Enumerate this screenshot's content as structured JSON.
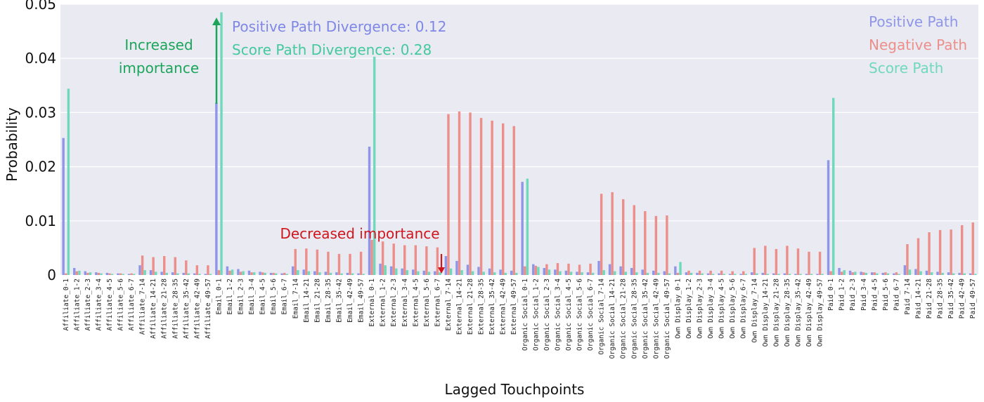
{
  "chart_data": {
    "type": "bar",
    "title": "",
    "xlabel": "Lagged Touchpoints",
    "ylabel": "Probability",
    "ylim": [
      0,
      0.05
    ],
    "yticks": [
      {
        "v": 0,
        "label": "0"
      },
      {
        "v": 0.01,
        "label": "0.01"
      },
      {
        "v": 0.02,
        "label": "0.02"
      },
      {
        "v": 0.03,
        "label": "0.03"
      },
      {
        "v": 0.04,
        "label": "0.04"
      },
      {
        "v": 0.05,
        "label": "0.05"
      }
    ],
    "grid": true,
    "legend_position": "top-right",
    "categories": [
      "Affiliate_0-1",
      "Affiliate_1-2",
      "Affiliate_2-3",
      "Affiliate_3-4",
      "Affiliate_4-5",
      "Affiliate_5-6",
      "Affiliate_6-7",
      "Affiliate_7-14",
      "Affiliate_14-21",
      "Affiliate_21-28",
      "Affiliate_28-35",
      "Affiliate_35-42",
      "Affiliate_42-49",
      "Affiliate_49-57",
      "Email_0-1",
      "Email_1-2",
      "Email_2-3",
      "Email_3-4",
      "Email_4-5",
      "Email_5-6",
      "Email_6-7",
      "Email_7-14",
      "Email_14-21",
      "Email_21-28",
      "Email_28-35",
      "Email_35-42",
      "Email_42-49",
      "Email_49-57",
      "External_0-1",
      "External_1-2",
      "External_2-3",
      "External_3-4",
      "External_4-5",
      "External_5-6",
      "External_6-7",
      "External_7-14",
      "External_14-21",
      "External_21-28",
      "External_28-35",
      "External_35-42",
      "External_42-49",
      "External_49-57",
      "Organic Social_0-1",
      "Organic Social_1-2",
      "Organic Social_2-3",
      "Organic Social_3-4",
      "Organic Social_4-5",
      "Organic Social_5-6",
      "Organic Social_6-7",
      "Organic Social_7-14",
      "Organic Social_14-21",
      "Organic Social_21-28",
      "Organic Social_28-35",
      "Organic Social_35-42",
      "Organic Social_42-49",
      "Organic Social_49-57",
      "Own Display_0-1",
      "Own Display_1-2",
      "Own Display_2-3",
      "Own Display_3-4",
      "Own Display_4-5",
      "Own Display_5-6",
      "Own Display_6-7",
      "Own Display_7-14",
      "Own Display_14-21",
      "Own Display_21-28",
      "Own Display_28-35",
      "Own Display_35-42",
      "Own Display_42-49",
      "Own Display_49-57",
      "Paid_0-1",
      "Paid_1-2",
      "Paid_2-3",
      "Paid_3-4",
      "Paid_4-5",
      "Paid_5-6",
      "Paid_6-7",
      "Paid_7-14",
      "Paid_14-21",
      "Paid_21-28",
      "Paid_28-35",
      "Paid_35-42",
      "Paid_42-49",
      "Paid_49-57"
    ],
    "series": [
      {
        "name": "Positive Path",
        "color": "#8f96e8",
        "values": [
          0.0253,
          0.0013,
          0.0007,
          0.0005,
          0.0004,
          0.0003,
          0.0002,
          0.0018,
          0.0009,
          0.0006,
          0.0005,
          0.0004,
          0.0003,
          0.0002,
          0.0318,
          0.0016,
          0.0011,
          0.0008,
          0.0006,
          0.0004,
          0.0003,
          0.0016,
          0.001,
          0.0007,
          0.0006,
          0.0005,
          0.0004,
          0.0003,
          0.0237,
          0.0021,
          0.0016,
          0.0012,
          0.001,
          0.0008,
          0.0007,
          0.0035,
          0.0026,
          0.0019,
          0.0015,
          0.0012,
          0.001,
          0.0008,
          0.0172,
          0.002,
          0.0013,
          0.001,
          0.0008,
          0.0006,
          0.0005,
          0.0026,
          0.002,
          0.0016,
          0.0013,
          0.001,
          0.0008,
          0.0007,
          0.0016,
          0.0005,
          0.0004,
          0.0003,
          0.0003,
          0.0002,
          0.0002,
          0.0005,
          0.0004,
          0.0003,
          0.0003,
          0.0002,
          0.0002,
          0.0002,
          0.0212,
          0.0013,
          0.0008,
          0.0006,
          0.0005,
          0.0004,
          0.0003,
          0.0018,
          0.0011,
          0.0008,
          0.0006,
          0.0005,
          0.0004,
          0.0003
        ]
      },
      {
        "name": "Negative Path",
        "color": "#ec8f8a",
        "values": [
          0.0003,
          0.0007,
          0.0004,
          0.0004,
          0.0003,
          0.0003,
          0.0003,
          0.0036,
          0.0033,
          0.0035,
          0.0033,
          0.0027,
          0.0018,
          0.0018,
          0.0009,
          0.0008,
          0.0006,
          0.0005,
          0.0005,
          0.0004,
          0.0004,
          0.0048,
          0.0049,
          0.0047,
          0.0043,
          0.0039,
          0.0039,
          0.0043,
          0.0065,
          0.0062,
          0.0058,
          0.0055,
          0.0055,
          0.0053,
          0.0051,
          0.0297,
          0.0302,
          0.03,
          0.029,
          0.0285,
          0.028,
          0.0275,
          0.0016,
          0.0017,
          0.002,
          0.0022,
          0.0021,
          0.0019,
          0.0021,
          0.015,
          0.0153,
          0.014,
          0.0129,
          0.0118,
          0.0109,
          0.011,
          0.0004,
          0.0008,
          0.0008,
          0.0008,
          0.0008,
          0.0007,
          0.0007,
          0.005,
          0.0054,
          0.0048,
          0.0054,
          0.0049,
          0.0043,
          0.0043,
          0.0007,
          0.0006,
          0.0005,
          0.0005,
          0.0005,
          0.0005,
          0.0005,
          0.0057,
          0.0068,
          0.0079,
          0.0083,
          0.0084,
          0.0092,
          0.0097
        ]
      },
      {
        "name": "Score Path",
        "color": "#6fd9bc",
        "values": [
          0.0344,
          0.0008,
          0.0005,
          0.0003,
          0.0002,
          0.0002,
          0.0002,
          0.0009,
          0.0006,
          0.0004,
          0.0003,
          0.0003,
          0.0002,
          0.0002,
          0.0485,
          0.001,
          0.0007,
          0.0005,
          0.0004,
          0.0003,
          0.0002,
          0.0009,
          0.0007,
          0.0005,
          0.0004,
          0.0003,
          0.0003,
          0.0002,
          0.0403,
          0.0018,
          0.0012,
          0.0009,
          0.0007,
          0.0006,
          0.0005,
          0.0012,
          0.0009,
          0.0007,
          0.0006,
          0.0005,
          0.0004,
          0.0004,
          0.0178,
          0.0015,
          0.001,
          0.0007,
          0.0006,
          0.0005,
          0.0004,
          0.0009,
          0.0007,
          0.0006,
          0.0005,
          0.0004,
          0.0004,
          0.0003,
          0.0024,
          0.0004,
          0.0003,
          0.0002,
          0.0002,
          0.0002,
          0.0002,
          0.0003,
          0.0002,
          0.0002,
          0.0002,
          0.0002,
          0.0002,
          0.0002,
          0.0327,
          0.0009,
          0.0006,
          0.0004,
          0.0003,
          0.0003,
          0.0002,
          0.001,
          0.0007,
          0.0005,
          0.0004,
          0.0003,
          0.0003,
          0.0002
        ]
      }
    ],
    "annotations": [
      {
        "id": "positive-divergence",
        "text": "Positive Path Divergence: 0.12",
        "color": "#7f87e6"
      },
      {
        "id": "score-divergence",
        "text": "Score Path Divergence: 0.28",
        "color": "#44c99f"
      },
      {
        "id": "increased-importance",
        "lines": [
          "Increased",
          "importance"
        ],
        "color": "#1aa55a"
      },
      {
        "id": "decreased-importance",
        "text": "Decreased importance",
        "color": "#d0151c"
      }
    ]
  }
}
